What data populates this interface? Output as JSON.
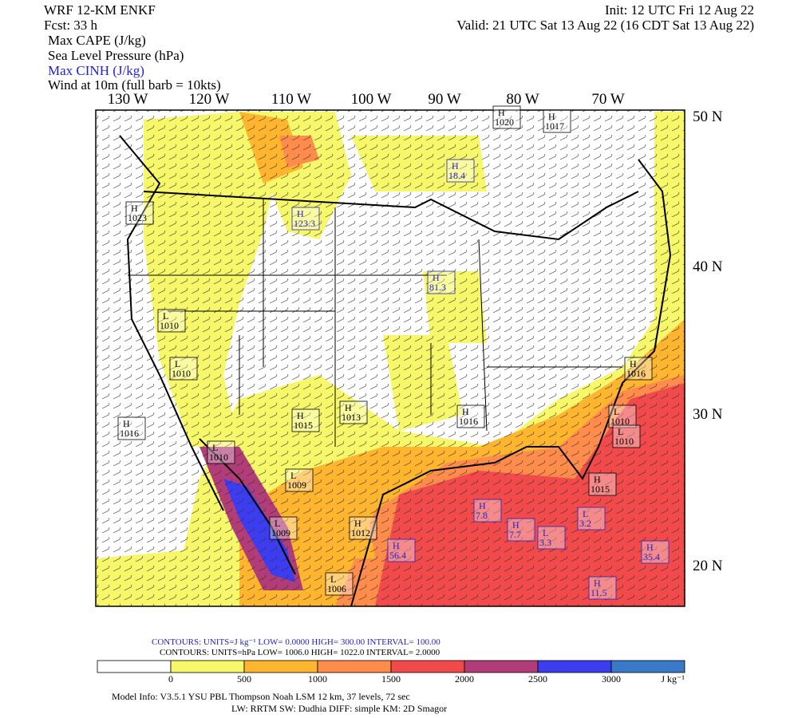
{
  "header": {
    "model": "WRF 12-KM ENKF",
    "forecast": "Fcst:   33 h",
    "init": "Init: 12 UTC Fri 12 Aug 22",
    "valid": "Valid: 21 UTC Sat 13 Aug 22 (16 CDT Sat 13 Aug 22)",
    "fields": [
      "Max CAPE (J/kg)",
      "Sea Level Pressure (hPa)",
      "Max CINH (J/kg)",
      "Wind at 10m (full barb = 10kts)"
    ]
  },
  "map": {
    "longitudes": [
      "130 W",
      "120 W",
      "110 W",
      "100 W",
      "90 W",
      "80 W",
      "70 W"
    ],
    "latitudes": [
      "50 N",
      "40 N",
      "30 N",
      "20 N"
    ],
    "pressure_centers": [
      {
        "kind": "H",
        "value": "1023"
      },
      {
        "kind": "L",
        "value": "1010"
      },
      {
        "kind": "L",
        "value": "1010"
      },
      {
        "kind": "H",
        "value": "1016"
      },
      {
        "kind": "L",
        "value": "1010"
      },
      {
        "kind": "L",
        "value": "1009"
      },
      {
        "kind": "L",
        "value": "1009"
      },
      {
        "kind": "H",
        "value": "1012"
      },
      {
        "kind": "L",
        "value": "1006"
      },
      {
        "kind": "H",
        "value": "1013"
      },
      {
        "kind": "H",
        "value": "1015"
      },
      {
        "kind": "H",
        "value": "1016"
      },
      {
        "kind": "L",
        "value": "1010"
      },
      {
        "kind": "H",
        "value": "1016"
      },
      {
        "kind": "L",
        "value": "1010"
      },
      {
        "kind": "H",
        "value": "1015"
      },
      {
        "kind": "H",
        "value": "1020"
      },
      {
        "kind": "H",
        "value": "1017"
      }
    ],
    "cinh_centers": [
      {
        "kind": "H",
        "value": "18.4"
      },
      {
        "kind": "H",
        "value": "123.3"
      },
      {
        "kind": "H",
        "value": "81.3"
      },
      {
        "kind": "H",
        "value": "56.4"
      },
      {
        "kind": "H",
        "value": "7.8"
      },
      {
        "kind": "H",
        "value": "7.7"
      },
      {
        "kind": "L",
        "value": "3.3"
      },
      {
        "kind": "H",
        "value": "35.4"
      },
      {
        "kind": "H",
        "value": "11.5"
      },
      {
        "kind": "L",
        "value": "3.2"
      }
    ]
  },
  "contours": {
    "cinh": "CONTOURS:  UNITS=J kg⁻¹  LOW=   0.0000      HIGH=  300.00      INTERVAL=   100.00",
    "slp": "CONTOURS:  UNITS=hPa  LOW=   1006.0      HIGH=  1022.0      INTERVAL=   2.0000"
  },
  "colorbar": {
    "ticks": [
      0,
      500,
      1000,
      1500,
      2000,
      2500,
      3000
    ],
    "unit": "J kg⁻¹",
    "colors": [
      "#ffffff",
      "#f7f76a",
      "#ffb52e",
      "#ff8c4a",
      "#f24a4a",
      "#b23c78",
      "#3c3cf0",
      "#3a78c8"
    ]
  },
  "footer": [
    "Model Info: V3.5.1          YSU PBL  Thompson     Noah LSM  12 km,    37 levels,    72 sec",
    "LW: RRTM SW: Dudhia  DIFF: simple KM: 2D Smagor"
  ]
}
